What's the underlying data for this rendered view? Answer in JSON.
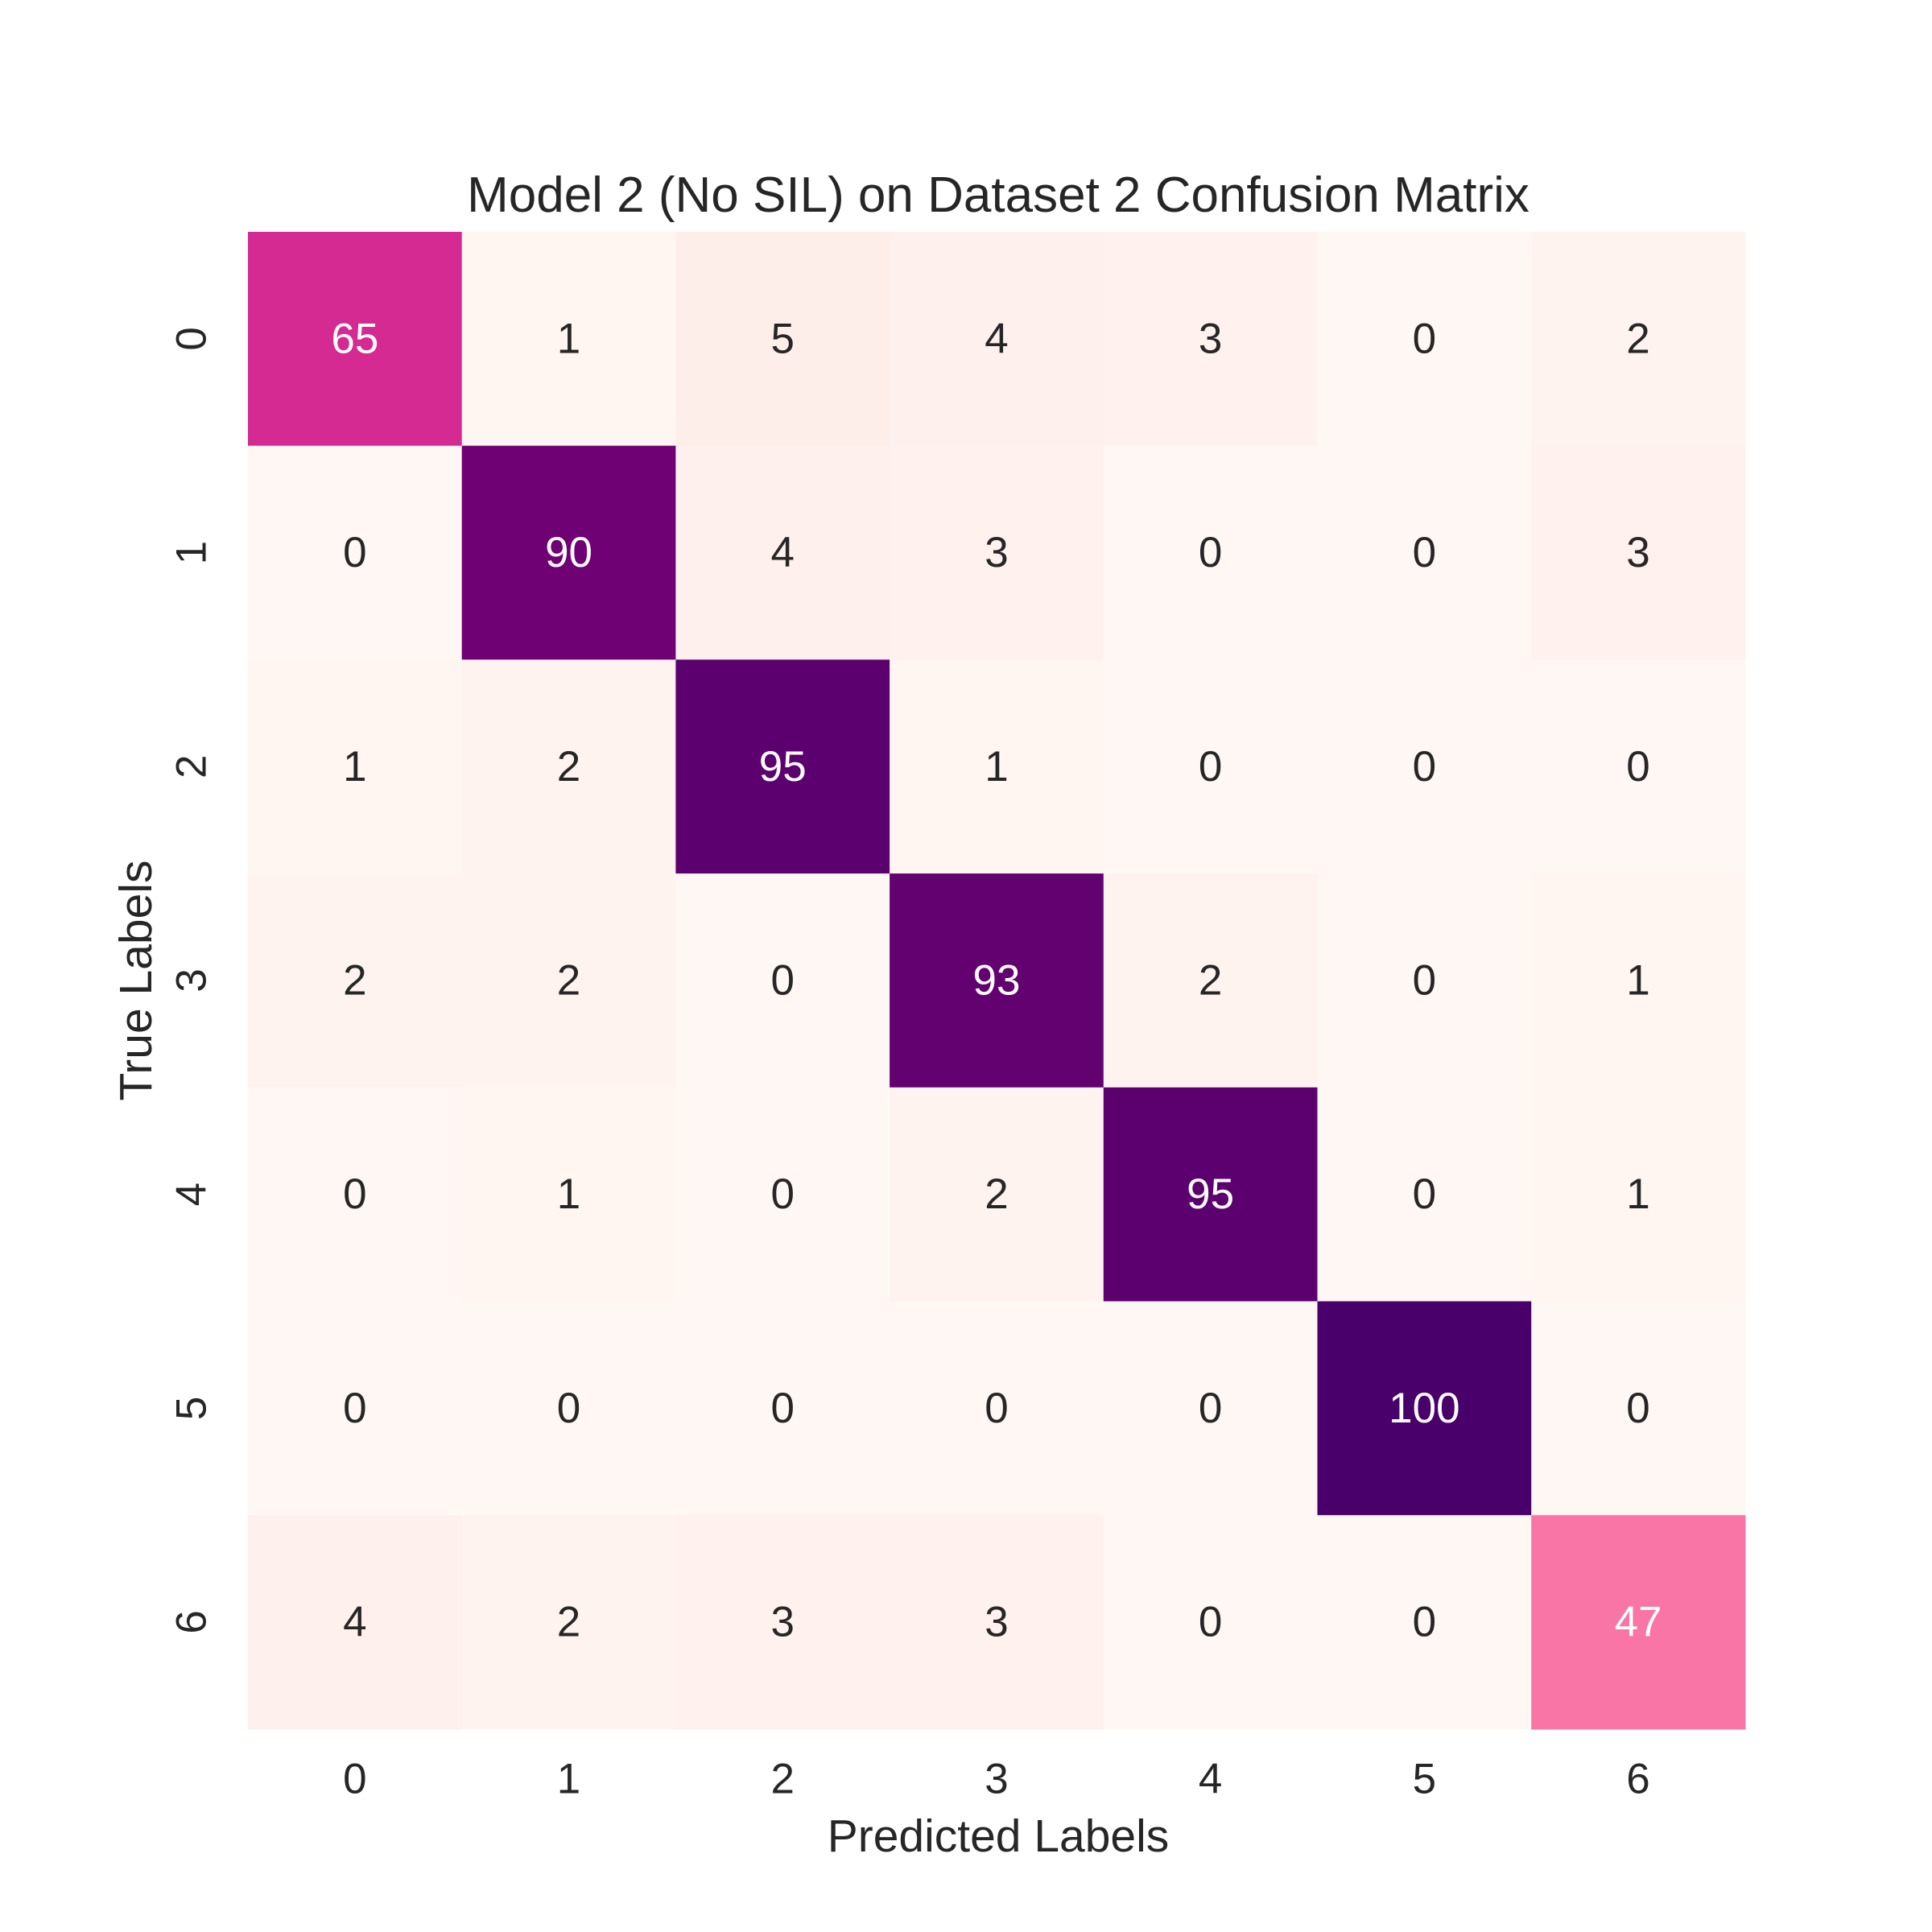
{
  "chart_data": {
    "type": "heatmap",
    "title": "Model 2 (No SIL) on Dataset 2 Confusion Matrix",
    "xlabel": "Predicted Labels",
    "ylabel": "True Labels",
    "x_categories": [
      "0",
      "1",
      "2",
      "3",
      "4",
      "5",
      "6"
    ],
    "y_categories": [
      "0",
      "1",
      "2",
      "3",
      "4",
      "5",
      "6"
    ],
    "values": [
      [
        65,
        1,
        5,
        4,
        3,
        0,
        2
      ],
      [
        0,
        90,
        4,
        3,
        0,
        0,
        3
      ],
      [
        1,
        2,
        95,
        1,
        0,
        0,
        0
      ],
      [
        2,
        2,
        0,
        93,
        2,
        0,
        1
      ],
      [
        0,
        1,
        0,
        2,
        95,
        0,
        1
      ],
      [
        0,
        0,
        0,
        0,
        0,
        100,
        0
      ],
      [
        4,
        2,
        3,
        3,
        0,
        0,
        47
      ]
    ],
    "value_range": [
      0,
      100
    ],
    "colormap": "RdPu",
    "colorbar": false,
    "annotations": true,
    "grid": false
  }
}
